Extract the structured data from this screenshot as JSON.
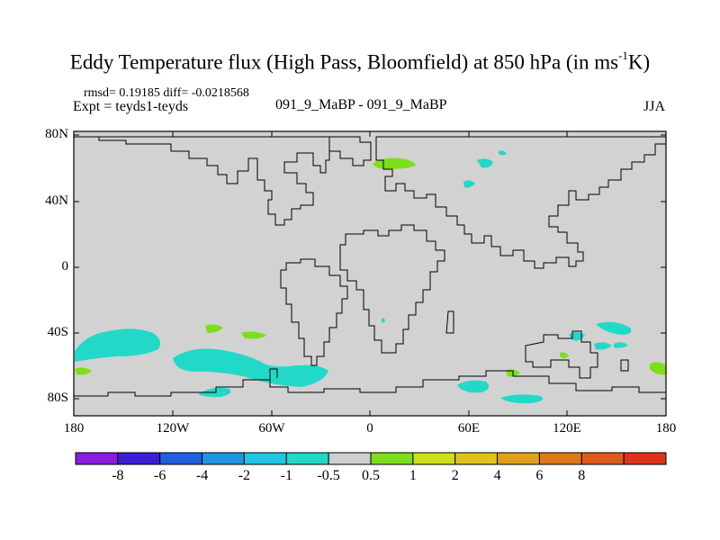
{
  "header": {
    "title": "Eddy Temperature flux (High Pass, Bloomfield) at 850 hPa (in ms",
    "title_sup": "-1",
    "title_end": "K)",
    "stats": "rmsd= 0.19185 diff= -0.0218568",
    "expt": "Expt = teyds1-teyds",
    "center_label": "091_9_MaBP - 091_9_MaBP",
    "season": "JJA"
  },
  "axes": {
    "lat_labels": [
      "80N",
      "40N",
      "0",
      "40S",
      "80S"
    ],
    "lon_labels": [
      "180",
      "120W",
      "60W",
      "0",
      "60E",
      "120E",
      "180"
    ]
  },
  "colorbar": {
    "colors": [
      "#8a1be0",
      "#3a1fd6",
      "#1f5fe0",
      "#1f95e0",
      "#20c6e6",
      "#22d9c8",
      "#cfcfcf",
      "#7dde1a",
      "#cde01a",
      "#e0c21a",
      "#e0a01a",
      "#e0781a",
      "#e05a1a",
      "#e0321a"
    ],
    "labels": [
      "-8",
      "-6",
      "-4",
      "-2",
      "-1",
      "-0.5",
      "0.5",
      "1",
      "2",
      "4",
      "6",
      "8"
    ]
  },
  "colors": {
    "land_bg": "#d2d2d2",
    "cyan": "#22d9c8",
    "cyan_dark": "#1fb0e0",
    "green": "#7dde1a"
  }
}
